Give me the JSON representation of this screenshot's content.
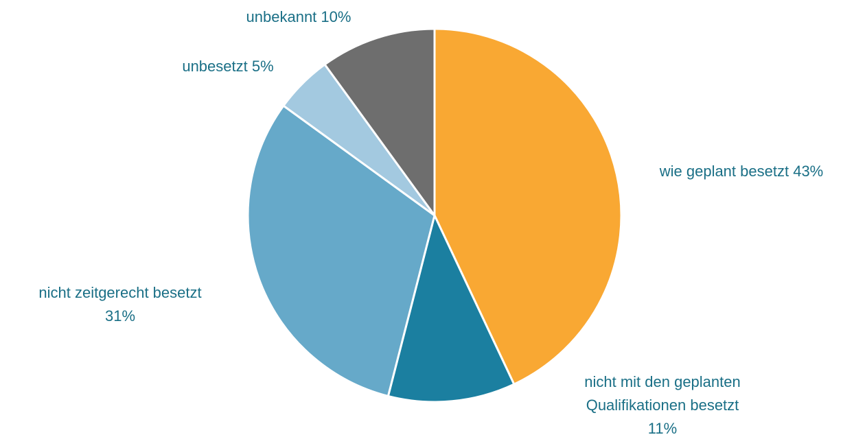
{
  "chart_data": {
    "type": "pie",
    "categories": [
      "wie geplant besetzt",
      "nicht mit den geplanten Qualifikationen besetzt",
      "nicht zeitgerecht besetzt",
      "unbesetzt",
      "unbekannt"
    ],
    "values": [
      43,
      11,
      31,
      5,
      10
    ],
    "value_labels": [
      "43%",
      "11%",
      "31%",
      "5%",
      "10%"
    ],
    "colors": [
      "#f9a833",
      "#1b7fa0",
      "#66a9c9",
      "#a3c9e0",
      "#6e6e6e"
    ]
  }
}
